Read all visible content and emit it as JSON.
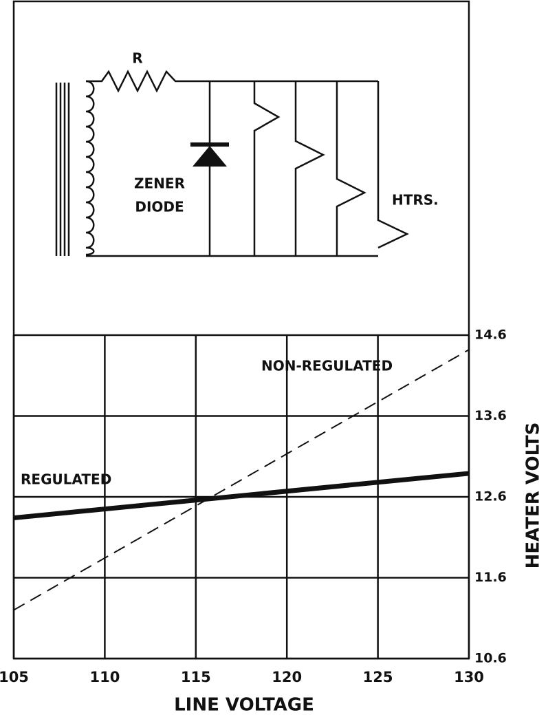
{
  "diagram": {
    "resistor": "R",
    "zener": [
      "ZENER",
      "DIODE"
    ],
    "heaters": "HTRS."
  },
  "chart_data": {
    "type": "line",
    "xlabel": "LINE VOLTAGE",
    "ylabel": "HEATER VOLTS",
    "x": [
      105,
      130
    ],
    "series": [
      {
        "name": "REGULATED",
        "color": "#111111",
        "style": "solid",
        "values": [
          12.34,
          12.89
        ]
      },
      {
        "name": "NON-REGULATED",
        "color": "#111111",
        "style": "dashed",
        "values": [
          11.2,
          14.42
        ]
      }
    ],
    "xlim": [
      105,
      130
    ],
    "xticks": [
      105,
      110,
      115,
      120,
      125,
      130
    ],
    "ylim": [
      10.6,
      14.6
    ],
    "yticks": [
      10.6,
      11.6,
      12.6,
      13.6,
      14.6
    ],
    "grid": true
  }
}
